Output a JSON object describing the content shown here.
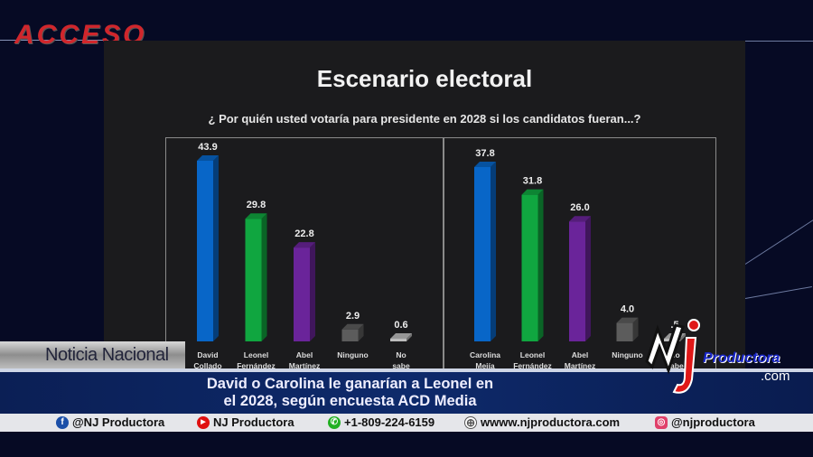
{
  "logo": "ACCESO",
  "chart_data": [
    {
      "type": "bar",
      "title": "Escenario electoral",
      "subtitle": "¿ Por quién usted votaría para presidente en 2028 si los candidatos fueran...?",
      "categories": [
        "David Collado",
        "Leonel Fernández",
        "Abel Martínez",
        "Ninguno",
        "No sabe"
      ],
      "values": [
        43.9,
        29.8,
        22.8,
        2.9,
        0.6
      ],
      "labels": [
        "43.9",
        "29.8",
        "22.8",
        "2.9",
        "0.6"
      ],
      "colors": [
        "#0866c8",
        "#10a640",
        "#6a249a",
        "#5c5c5c",
        "#bdbdbd"
      ]
    },
    {
      "type": "bar",
      "categories": [
        "Carolina Mejía",
        "Leonel Fernández",
        "Abel Martínez",
        "Ninguno",
        "No sabe"
      ],
      "values": [
        37.8,
        31.8,
        26.0,
        4.0,
        0.5
      ],
      "labels": [
        "37.8",
        "31.8",
        "26.0",
        "4.0",
        ".5"
      ],
      "colors": [
        "#0866c8",
        "#10a640",
        "#6a249a",
        "#5c5c5c",
        "#bdbdbd"
      ]
    }
  ],
  "section_label": "Noticia Nacional",
  "headline": [
    "David o Carolina le ganarían a Leonel en",
    "el 2028, según encuesta ACD Media"
  ],
  "brand": {
    "name": "Productora",
    "tld": ".com"
  },
  "ticker": [
    {
      "icon": "facebook-icon",
      "text": "@NJ Productora",
      "color": "#1b4fa8",
      "glyph": "f"
    },
    {
      "icon": "youtube-icon",
      "text": "NJ Productora",
      "color": "#e01010",
      "glyph": "▶"
    },
    {
      "icon": "whatsapp-icon",
      "text": "+1-809-224-6159",
      "color": "#22b022",
      "glyph": "✆"
    },
    {
      "icon": "globe-icon",
      "text": "wwww.njproductora.com",
      "color": "#777777",
      "glyph": "⊕"
    },
    {
      "icon": "instagram-icon",
      "text": "@njproductora",
      "color": "#e0406a",
      "glyph": "◎"
    }
  ]
}
